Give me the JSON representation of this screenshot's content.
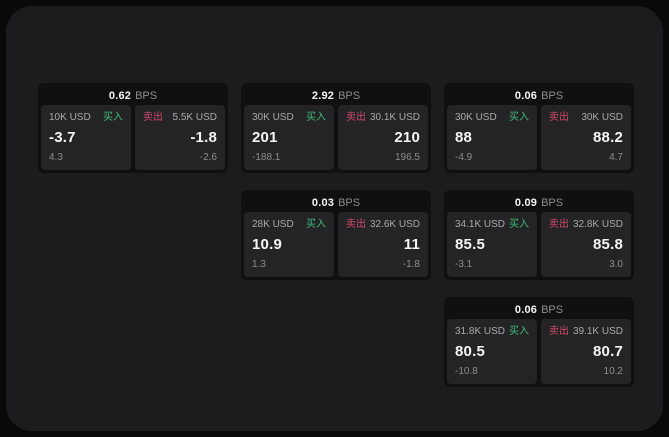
{
  "labels": {
    "buy": "买入",
    "sell": "卖出",
    "bps_unit": "BPS"
  },
  "colors": {
    "panel_bg": "#1c1c1e",
    "card_bg": "#101012",
    "pane_bg": "#242427",
    "buy_green": "#3fbb75",
    "sell_red": "#cf4a68",
    "value_text": "#f5f5f5",
    "muted_text": "#8d8d8d"
  },
  "cards": [
    {
      "bps": "0.62",
      "grid": {
        "col": 1,
        "row": 1
      },
      "buy": {
        "amount": "10K USD",
        "value": "-3.7",
        "sub": "4.3"
      },
      "sell": {
        "amount": "5.5K USD",
        "value": "-1.8",
        "sub": "-2.6"
      }
    },
    {
      "bps": "2.92",
      "grid": {
        "col": 2,
        "row": 1
      },
      "buy": {
        "amount": "30K USD",
        "value": "201",
        "sub": "-188.1"
      },
      "sell": {
        "amount": "30.1K USD",
        "value": "210",
        "sub": "196.5"
      }
    },
    {
      "bps": "0.06",
      "grid": {
        "col": 3,
        "row": 1
      },
      "buy": {
        "amount": "30K USD",
        "value": "88",
        "sub": "-4.9"
      },
      "sell": {
        "amount": "30K USD",
        "value": "88.2",
        "sub": "4.7"
      }
    },
    {
      "bps": "0.03",
      "grid": {
        "col": 2,
        "row": 2
      },
      "buy": {
        "amount": "28K USD",
        "value": "10.9",
        "sub": "1.3"
      },
      "sell": {
        "amount": "32.6K USD",
        "value": "11",
        "sub": "-1.8"
      }
    },
    {
      "bps": "0.09",
      "grid": {
        "col": 3,
        "row": 2
      },
      "buy": {
        "amount": "34.1K USD",
        "value": "85.5",
        "sub": "-3.1"
      },
      "sell": {
        "amount": "32.8K USD",
        "value": "85.8",
        "sub": "3.0"
      }
    },
    {
      "bps": "0.06",
      "grid": {
        "col": 3,
        "row": 3
      },
      "buy": {
        "amount": "31.8K USD",
        "value": "80.5",
        "sub": "-10.8"
      },
      "sell": {
        "amount": "39.1K USD",
        "value": "80.7",
        "sub": "10.2"
      }
    }
  ]
}
